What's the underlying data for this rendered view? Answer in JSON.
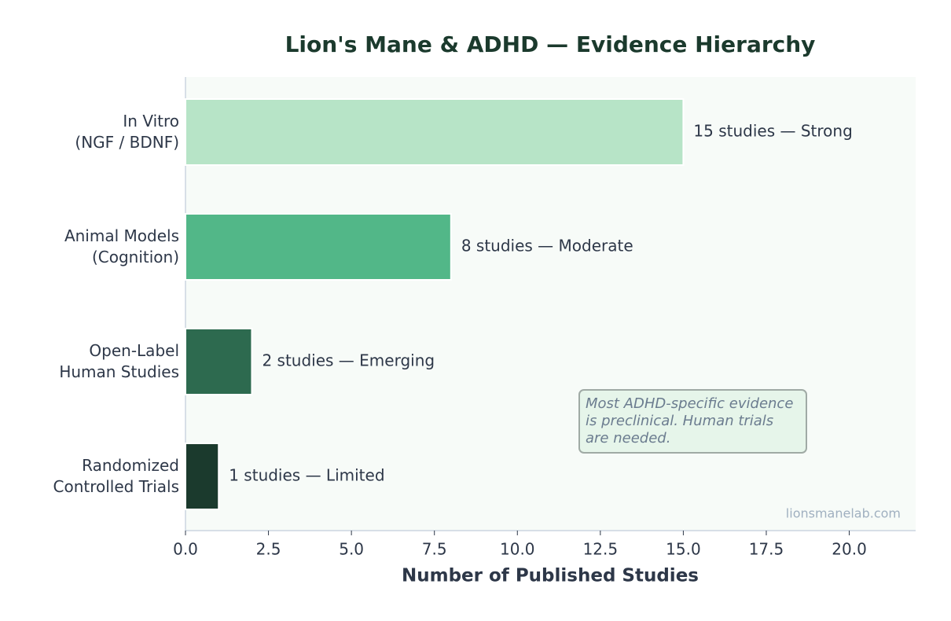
{
  "chart_data": {
    "type": "bar",
    "orientation": "horizontal",
    "title": "Lion's Mane & ADHD — Evidence Hierarchy",
    "xlabel": "Number of Published Studies",
    "categories": [
      "In Vitro\n(NGF / BDNF)",
      "Animal Models\n(Cognition)",
      "Open-Label\nHuman Studies",
      "Randomized\nControlled Trials"
    ],
    "values": [
      15,
      8,
      2,
      1
    ],
    "value_labels": [
      "15 studies — Strong",
      "8 studies — Moderate",
      "2 studies — Emerging",
      "1 studies — Limited"
    ],
    "colors": [
      "#b7e4c7",
      "#52b788",
      "#2d6a4f",
      "#1b3a2d"
    ],
    "xlim": [
      0,
      22
    ],
    "xticks": [
      {
        "value": 0,
        "label": "0.0"
      },
      {
        "value": 2.5,
        "label": "2.5"
      },
      {
        "value": 5,
        "label": "5.0"
      },
      {
        "value": 7.5,
        "label": "7.5"
      },
      {
        "value": 10,
        "label": "10.0"
      },
      {
        "value": 12.5,
        "label": "12.5"
      },
      {
        "value": 15,
        "label": "15.0"
      },
      {
        "value": 17.5,
        "label": "17.5"
      },
      {
        "value": 20,
        "label": "20.0"
      }
    ],
    "annotation": "Most ADHD-specific evidence\nis preclinical. Human trials\nare needed.",
    "watermark": "lionsmanelab.com"
  }
}
